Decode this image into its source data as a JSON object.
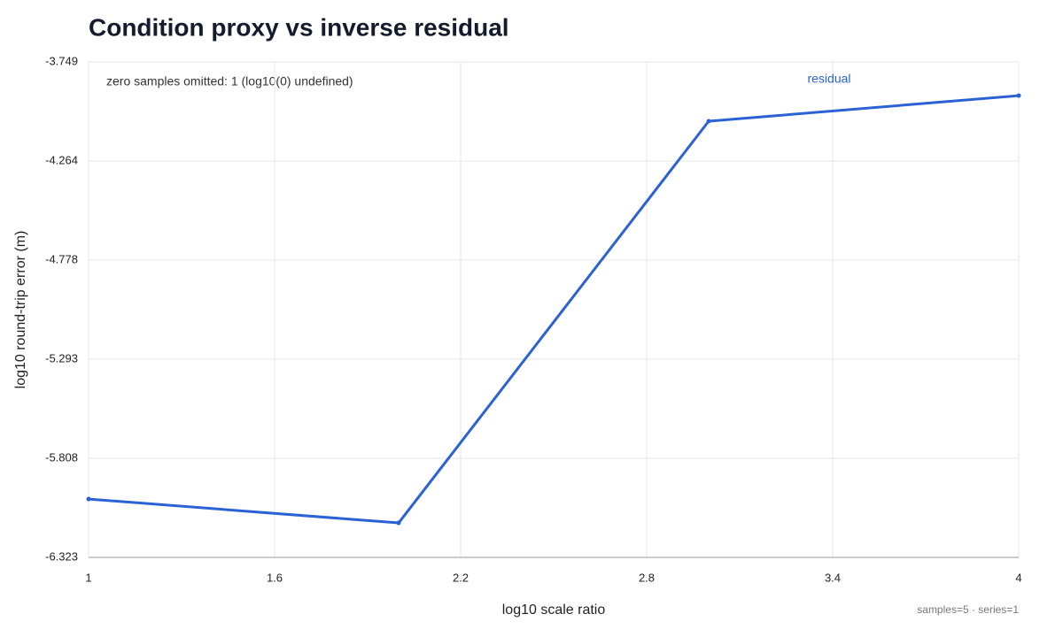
{
  "chart_data": {
    "type": "line",
    "title": "Condition proxy vs inverse residual",
    "x_label": "log10 scale ratio",
    "y_label": "log10 round-trip error (m)",
    "annotation": "zero samples omitted: 1 (log10(0) undefined)",
    "footer": "samples=5 · series=1",
    "x": [
      1,
      2,
      3,
      4
    ],
    "series": [
      {
        "name": "residual",
        "color": "#2a62d6",
        "values": [
          -6.02,
          -6.144,
          -4.057,
          -3.924
        ]
      }
    ],
    "xlim": [
      1,
      4
    ],
    "xticks": [
      1,
      1.6,
      2.2,
      2.8,
      3.4,
      4
    ],
    "ylim": [
      -6.323,
      -3.749
    ],
    "yticks": [
      -3.749,
      -4.264,
      -4.778,
      -5.293,
      -5.808,
      -6.323
    ],
    "grid": true
  }
}
